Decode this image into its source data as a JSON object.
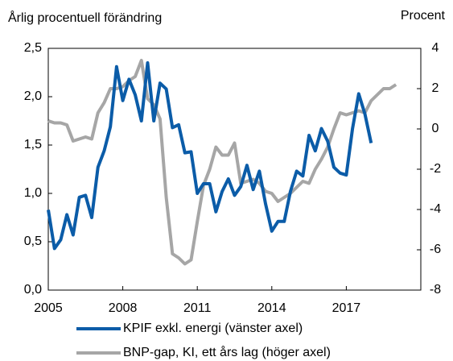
{
  "chart_data": {
    "type": "line",
    "title": "Årlig procentuell förändring",
    "y2_label": "Procent",
    "xlim": [
      2005,
      2020
    ],
    "xticks": [
      2005,
      2008,
      2011,
      2014,
      2017
    ],
    "ylim": [
      0,
      2.5
    ],
    "yticks": [
      {
        "value": 0,
        "label": "0,0"
      },
      {
        "value": 0.5,
        "label": "0,5"
      },
      {
        "value": 1,
        "label": "1,0"
      },
      {
        "value": 1.5,
        "label": "1,5"
      },
      {
        "value": 2,
        "label": "2,0"
      },
      {
        "value": 2.5,
        "label": "2,5"
      }
    ],
    "y2lim": [
      -8,
      4
    ],
    "y2ticks": [
      -8,
      -6,
      -4,
      -2,
      0,
      2,
      4
    ],
    "series": [
      {
        "name": "KPIF exkl. energi (vänster axel)",
        "color": "#0b5ca8",
        "axis": "y",
        "x": [
          2005,
          2005.25,
          2005.5,
          2005.75,
          2006,
          2006.25,
          2006.5,
          2006.75,
          2007,
          2007.25,
          2007.5,
          2007.75,
          2008,
          2008.25,
          2008.5,
          2008.75,
          2009,
          2009.25,
          2009.5,
          2009.75,
          2010,
          2010.25,
          2010.5,
          2010.75,
          2011,
          2011.25,
          2011.5,
          2011.75,
          2012,
          2012.25,
          2012.5,
          2012.75,
          2013,
          2013.25,
          2013.5,
          2013.75,
          2014,
          2014.25,
          2014.5,
          2014.75,
          2015,
          2015.25,
          2015.5,
          2015.75,
          2016,
          2016.25,
          2016.5,
          2016.75,
          2017,
          2017.25,
          2017.5,
          2017.75,
          2018
        ],
        "values": [
          0.83,
          0.43,
          0.52,
          0.78,
          0.57,
          0.96,
          0.98,
          0.75,
          1.27,
          1.44,
          1.69,
          2.31,
          1.96,
          2.18,
          2.02,
          1.75,
          2.35,
          1.75,
          2.14,
          2.08,
          1.68,
          1.71,
          1.42,
          1.43,
          1.0,
          1.1,
          1.1,
          0.81,
          1.02,
          1.15,
          0.98,
          1.07,
          1.29,
          1.04,
          1.23,
          0.89,
          0.61,
          0.71,
          0.71,
          1.02,
          1.23,
          1.18,
          1.6,
          1.44,
          1.67,
          1.54,
          1.27,
          1.21,
          1.19,
          1.67,
          2.03,
          1.82,
          1.52
        ]
      },
      {
        "name": "BNP-gap, KI, ett års lag (höger axel)",
        "color": "#a6a6a6",
        "axis": "y2",
        "x": [
          2005,
          2005.25,
          2005.5,
          2005.75,
          2006,
          2006.25,
          2006.5,
          2006.75,
          2007,
          2007.25,
          2007.5,
          2007.75,
          2008,
          2008.25,
          2008.5,
          2008.75,
          2009,
          2009.25,
          2009.5,
          2009.75,
          2010,
          2010.25,
          2010.5,
          2010.75,
          2011,
          2011.25,
          2011.5,
          2011.75,
          2012,
          2012.25,
          2012.5,
          2012.75,
          2013,
          2013.25,
          2013.5,
          2013.75,
          2014,
          2014.25,
          2014.5,
          2014.75,
          2015,
          2015.25,
          2015.5,
          2015.75,
          2016,
          2016.25,
          2016.5,
          2016.75,
          2017,
          2017.25,
          2017.5,
          2017.75,
          2018,
          2018.25,
          2018.5,
          2018.75,
          2019
        ],
        "values": [
          0.4,
          0.3,
          0.3,
          0.2,
          -0.6,
          -0.5,
          -0.4,
          -0.5,
          0.8,
          1.3,
          2.0,
          2.0,
          2.1,
          2.4,
          2.6,
          3.4,
          1.5,
          1.2,
          0.5,
          -3.4,
          -6.2,
          -6.4,
          -6.7,
          -6.5,
          -4.6,
          -2.8,
          -2.0,
          -0.9,
          -1.3,
          -1.3,
          -0.7,
          -2.7,
          -2.6,
          -2.5,
          -2.7,
          -3.1,
          -3.2,
          -3.6,
          -3.4,
          -3.2,
          -2.9,
          -2.6,
          -2.7,
          -2.0,
          -1.5,
          -0.9,
          0,
          0.8,
          0.7,
          0.8,
          0.9,
          0.8,
          1.4,
          1.7,
          2.0,
          2.0,
          2.2
        ]
      }
    ]
  }
}
